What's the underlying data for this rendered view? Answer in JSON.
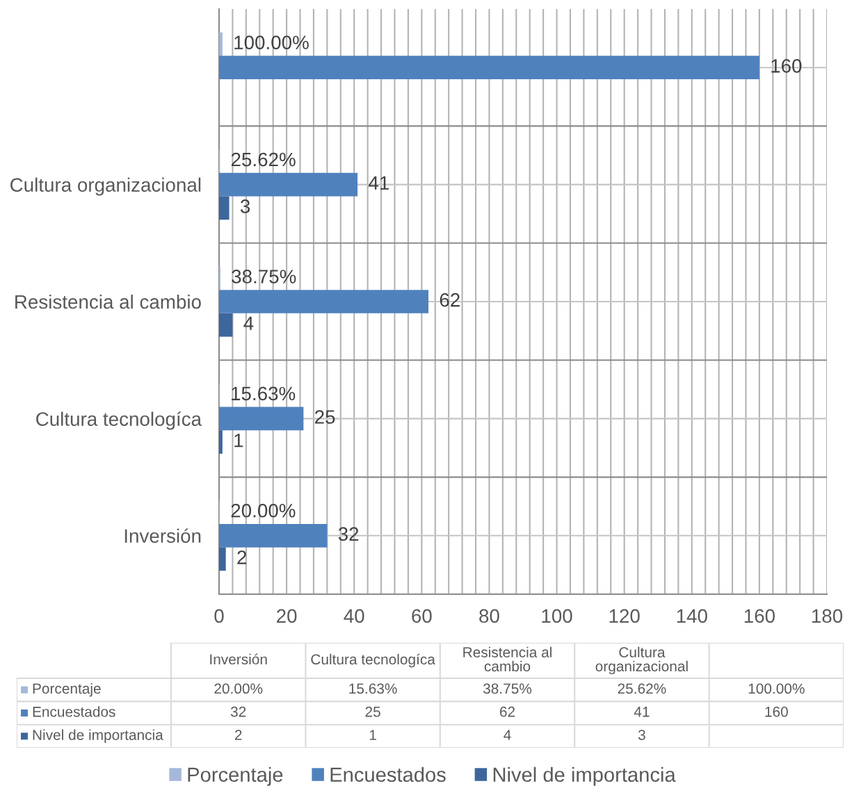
{
  "chart_data": {
    "type": "bar",
    "orientation": "horizontal",
    "categories": [
      null,
      "Cultura organizacional",
      "Resistencia al cambio",
      "Cultura tecnologíca",
      "Inversión"
    ],
    "series": [
      {
        "name": "Porcentaje",
        "color": "#a5b8db",
        "values": [
          1.0,
          0.2562,
          0.3875,
          0.1563,
          0.2
        ],
        "value_labels": [
          "100.00%",
          "25.62%",
          "38.75%",
          "15.63%",
          "20.00%"
        ]
      },
      {
        "name": "Encuestados",
        "color": "#4f81bd",
        "values": [
          160,
          41,
          62,
          25,
          32
        ],
        "value_labels": [
          "160",
          "41",
          "62",
          "25",
          "32"
        ]
      },
      {
        "name": "Nivel de importancia",
        "color": "#3d679c",
        "values": [
          null,
          3,
          4,
          1,
          2
        ],
        "value_labels": [
          null,
          "3",
          "4",
          "1",
          "2"
        ]
      }
    ],
    "xlim": [
      0,
      180
    ],
    "xticks": [
      0,
      {
        "value": 4,
        "label": null
      },
      {
        "value": 8,
        "label": null
      },
      {
        "value": 12,
        "label": null
      },
      {
        "value": 16,
        "label": null
      },
      20,
      {
        "value": 24,
        "label": null
      },
      {
        "value": 28,
        "label": null
      },
      {
        "value": 32,
        "label": null
      },
      {
        "value": 36,
        "label": null
      },
      40,
      {
        "value": 44,
        "label": null
      },
      {
        "value": 48,
        "label": null
      },
      {
        "value": 52,
        "label": null
      },
      {
        "value": 56,
        "label": null
      },
      60,
      {
        "value": 64,
        "label": null
      },
      {
        "value": 68,
        "label": null
      },
      {
        "value": 72,
        "label": null
      },
      {
        "value": 76,
        "label": null
      },
      80,
      {
        "value": 84,
        "label": null
      },
      {
        "value": 88,
        "label": null
      },
      {
        "value": 92,
        "label": null
      },
      {
        "value": 96,
        "label": null
      },
      100,
      {
        "value": 104,
        "label": null
      },
      {
        "value": 108,
        "label": null
      },
      {
        "value": 112,
        "label": null
      },
      {
        "value": 116,
        "label": null
      },
      120,
      {
        "value": 124,
        "label": null
      },
      {
        "value": 128,
        "label": null
      },
      {
        "value": 132,
        "label": null
      },
      {
        "value": 136,
        "label": null
      },
      140,
      {
        "value": 144,
        "label": null
      },
      {
        "value": 148,
        "label": null
      },
      {
        "value": 152,
        "label": null
      },
      {
        "value": 156,
        "label": null
      },
      160,
      {
        "value": 164,
        "label": null
      },
      {
        "value": 168,
        "label": null
      },
      {
        "value": 172,
        "label": null
      },
      {
        "value": 176,
        "label": null
      },
      180
    ],
    "grid": true,
    "legend": "bottom"
  }
}
